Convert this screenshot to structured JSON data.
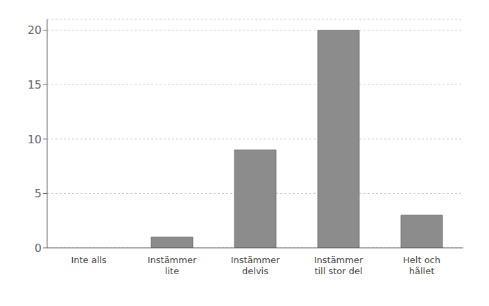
{
  "chart_data": {
    "type": "bar",
    "categories": [
      "Inte alls",
      "Instämmer\nlite",
      "Instämmer\ndelvis",
      "Instämmer\ntill stor del",
      "Helt och\nhållet"
    ],
    "values": [
      0,
      1,
      9,
      20,
      3
    ],
    "color": "#8c8c8c",
    "ylim": [
      0,
      21
    ],
    "yticks": [
      0,
      5,
      10,
      15,
      20
    ],
    "grid": true
  }
}
